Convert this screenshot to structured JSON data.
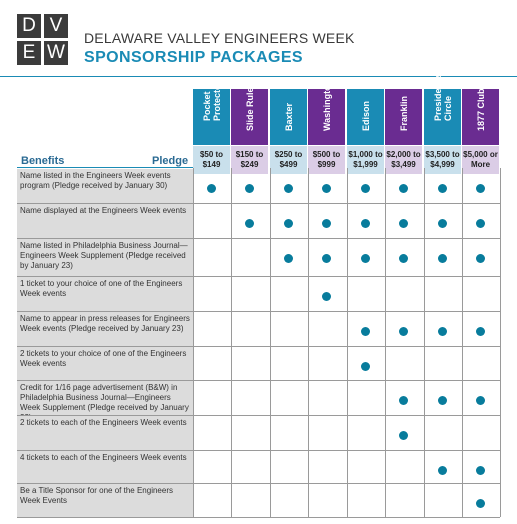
{
  "logo": {
    "letters": [
      "D",
      "V",
      "E",
      "W"
    ],
    "bg": "#3b3b3b"
  },
  "header": {
    "title": "DELAWARE VALLEY ENGINEERS WEEK",
    "subtitle": "SPONSORSHIP PACKAGES",
    "accent": "#1a8bb5"
  },
  "table": {
    "benefits_label": "Benefits",
    "pledge_label": "Pledge",
    "dot_color": "#087c9c",
    "packages": [
      {
        "name": "Pocket Protector",
        "price": "$50 to $149",
        "color": "#1a8bb5",
        "price_bg": "#c9e0ec"
      },
      {
        "name": "Slide Rule",
        "price": "$150 to $249",
        "color": "#6a2c91",
        "price_bg": "#dbcde6"
      },
      {
        "name": "Baxter",
        "price": "$250 to $499",
        "color": "#1a8bb5",
        "price_bg": "#c9e0ec"
      },
      {
        "name": "Washington",
        "price": "$500 to $999",
        "color": "#6a2c91",
        "price_bg": "#dbcde6"
      },
      {
        "name": "Edison",
        "price": "$1,000 to $1,999",
        "color": "#1a8bb5",
        "price_bg": "#c9e0ec"
      },
      {
        "name": "Franklin",
        "price": "$2,000 to $3,499",
        "color": "#6a2c91",
        "price_bg": "#dbcde6"
      },
      {
        "name": "President's Circle",
        "price": "$3,500 to $4,999",
        "color": "#1a8bb5",
        "price_bg": "#c9e0ec"
      },
      {
        "name": "1877 Club",
        "price": "$5,000 or More",
        "color": "#6a2c91",
        "price_bg": "#dbcde6"
      }
    ],
    "rows": [
      {
        "benefit": "Name listed in the Engineers Week events program (Pledge received by January 30)",
        "includes": [
          1,
          1,
          1,
          1,
          1,
          1,
          1,
          1
        ]
      },
      {
        "benefit": "Name displayed at the Engineers Week events",
        "includes": [
          0,
          1,
          1,
          1,
          1,
          1,
          1,
          1
        ]
      },
      {
        "benefit": "Name listed in Philadelphia Business Journal—Engineers Week Supplement (Pledge received by January 23)",
        "includes": [
          0,
          0,
          1,
          1,
          1,
          1,
          1,
          1
        ]
      },
      {
        "benefit": "1 ticket to your choice of one of the Engineers Week events",
        "includes": [
          0,
          0,
          0,
          1,
          0,
          0,
          0,
          0
        ]
      },
      {
        "benefit": "Name to appear in press releases for Engineers Week events (Pledge received by January 23)",
        "includes": [
          0,
          0,
          0,
          0,
          1,
          1,
          1,
          1
        ]
      },
      {
        "benefit": "2 tickets to your choice of one of the Engineers Week events",
        "includes": [
          0,
          0,
          0,
          0,
          1,
          0,
          0,
          0
        ]
      },
      {
        "benefit": "Credit for 1/16 page advertisement (B&W) in Philadelphia Business Journal—Engineers Week Supplement (Pledge received by January 23)",
        "includes": [
          0,
          0,
          0,
          0,
          0,
          1,
          1,
          1
        ]
      },
      {
        "benefit": "2 tickets to each of the Engineers Week events",
        "includes": [
          0,
          0,
          0,
          0,
          0,
          1,
          0,
          0
        ]
      },
      {
        "benefit": "4 tickets to each of the Engineers Week events",
        "includes": [
          0,
          0,
          0,
          0,
          0,
          0,
          1,
          1
        ]
      },
      {
        "benefit": "Be a Title Sponsor for one of the Engineers Week Events",
        "includes": [
          0,
          0,
          0,
          0,
          0,
          0,
          0,
          1
        ]
      }
    ]
  }
}
